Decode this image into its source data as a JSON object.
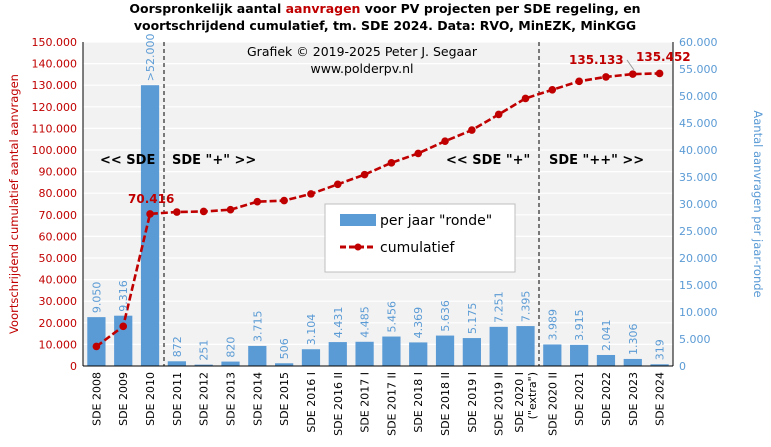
{
  "title": {
    "line1_a": "Oorspronkelijk  aantal ",
    "line1_b": "aanvragen",
    "line1_c": " voor PV projecten per SDE regeling,  en",
    "line2": "voortschrijdend  cumulatief,  tm. SDE 2024. Data: RVO, MinEZK,  MinKGG"
  },
  "credit": {
    "line1": "Grafiek  © 2019-2025 Peter J. Segaar",
    "line2": "www.polderpv.nl"
  },
  "sections": [
    "<< SDE",
    "SDE \"+\"  >>",
    "<< SDE \"+\"",
    "SDE \"++\"  >>"
  ],
  "annotations": {
    "sde2010_cumulative": "70.416",
    "sde2023_cumulative": "135.133",
    "sde2024_cumulative": "135.452",
    "sde2010_bar": ">52.000"
  },
  "colors": {
    "bar": "#5b9bd5",
    "line": "#c00000",
    "plot_bg": "#f2f2f2",
    "grid": "#ffffff"
  },
  "chart_data": {
    "type": "bar",
    "title": "Oorspronkelijk aantal aanvragen voor PV projecten per SDE regeling, en voortschrijdend cumulatief, tm. SDE 2024. Data: RVO, MinEZK, MinKGG",
    "categories": [
      "SDE 2008",
      "SDE 2009",
      "SDE 2010",
      "SDE 2011",
      "SDE 2012",
      "SDE 2013",
      "SDE 2014",
      "SDE 2015",
      "SDE 2016 I",
      "SDE 2016 II",
      "SDE 2017 I",
      "SDE 2017 II",
      "SDE 2018 I",
      "SDE 2018 II",
      "SDE 2019 I",
      "SDE 2019 II",
      "SDE 2020 I\n(\"extra\")",
      "SDE 2020 II",
      "SDE 2021",
      "SDE 2022",
      "SDE 2023",
      "SDE 2024"
    ],
    "series": [
      {
        "name": "per jaar \"ronde\"",
        "axis": "right",
        "values": [
          9050,
          9316,
          52000,
          872,
          251,
          820,
          3715,
          506,
          3104,
          4431,
          4485,
          5456,
          4369,
          5636,
          5175,
          7251,
          7395,
          3989,
          3915,
          2041,
          1306,
          319
        ],
        "labels": [
          "9.050",
          "9.316",
          ">52.000",
          "872",
          "251",
          "820",
          "3.715",
          "506",
          "3.104",
          "4.431",
          "4.485",
          "5.456",
          "4.369",
          "5.636",
          "5.175",
          "7.251",
          "7.395",
          "3.989",
          "3.915",
          "2.041",
          "1.306",
          "319"
        ]
      },
      {
        "name": "cumulatief",
        "axis": "left",
        "type": "line",
        "values": [
          9050,
          18366,
          70416,
          71288,
          71539,
          72359,
          76074,
          76580,
          79684,
          84115,
          88600,
          94056,
          98425,
          104061,
          109236,
          116487,
          123882,
          127871,
          131786,
          133827,
          135133,
          135452
        ]
      }
    ],
    "y_left": {
      "label": "Voortschrijdend cumulatief aantal aanvragen",
      "range": [
        0,
        150000
      ],
      "ticks": [
        "0",
        "10.000",
        "20.000",
        "30.000",
        "40.000",
        "50.000",
        "60.000",
        "70.000",
        "80.000",
        "90.000",
        "100.000",
        "110.000",
        "120.000",
        "130.000",
        "140.000",
        "150.000"
      ]
    },
    "y_right": {
      "label": "Aantal aanvragen per jaar-ronde",
      "range": [
        0,
        60000
      ],
      "ticks": [
        "0",
        "5.000",
        "10.000",
        "15.000",
        "20.000",
        "25.000",
        "30.000",
        "35.000",
        "40.000",
        "45.000",
        "50.000",
        "55.000",
        "60.000"
      ]
    },
    "legend": {
      "position": "center-right",
      "entries": [
        "per jaar \"ronde\"",
        "cumulatief"
      ]
    },
    "grid": true
  }
}
